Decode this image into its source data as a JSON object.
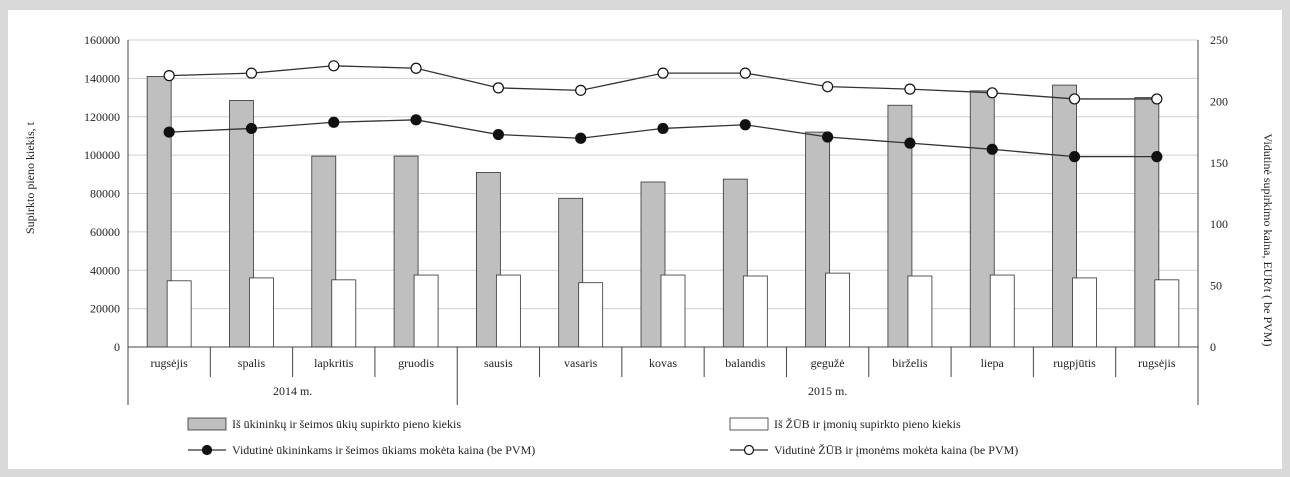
{
  "chart_data": {
    "type": "bar",
    "categories": [
      "rugsėjis",
      "spalis",
      "lapkritis",
      "gruodis",
      "sausis",
      "vasaris",
      "kovas",
      "balandis",
      "gegužė",
      "birželis",
      "liepa",
      "rugpjūtis",
      "rugsėjis"
    ],
    "groups": [
      {
        "label": "2014 m.",
        "count": 4
      },
      {
        "label": "2015 m.",
        "count": 9
      }
    ],
    "ylabel": "Supirkto pieno kiekis, t",
    "y2label": "Vidutinė supirkimo kaina, EUR/t ( be PVM)",
    "ylim": [
      0,
      160000
    ],
    "yticks": [
      "0",
      "20000",
      "40000",
      "60000",
      "80000",
      "100000",
      "120000",
      "140000",
      "160000"
    ],
    "y2lim": [
      0,
      250
    ],
    "y2ticks": [
      "0",
      "50",
      "100",
      "150",
      "200",
      "250"
    ],
    "grid": true,
    "legend_position": "bottom",
    "bar_series": [
      {
        "name": "Iš ūkininkų ir šeimos ūkių supirkto pieno kiekis",
        "color": "#bfbfbf",
        "values": [
          141000,
          128500,
          99500,
          99500,
          91000,
          77500,
          86000,
          87500,
          112000,
          126000,
          133500,
          136500,
          130000
        ]
      },
      {
        "name": "Iš ŽŪB ir įmonių supirkto pieno kiekis",
        "color": "#ffffff",
        "values": [
          34500,
          36000,
          35000,
          37500,
          37500,
          33500,
          37500,
          37000,
          38500,
          37000,
          37500,
          36000,
          35000
        ]
      }
    ],
    "line_series": [
      {
        "name": "Vidutinė ūkininkams ir šeimos ūkiams mokėta kaina (be PVM)",
        "marker": "filled",
        "values": [
          175,
          178,
          183,
          185,
          173,
          170,
          178,
          181,
          171,
          166,
          161,
          155,
          155
        ]
      },
      {
        "name": "Vidutinė ŽŪB ir įmonėms mokėta kaina (be PVM)",
        "marker": "hollow",
        "values": [
          221,
          223,
          229,
          227,
          211,
          209,
          223,
          223,
          212,
          210,
          207,
          202,
          202
        ]
      }
    ]
  }
}
